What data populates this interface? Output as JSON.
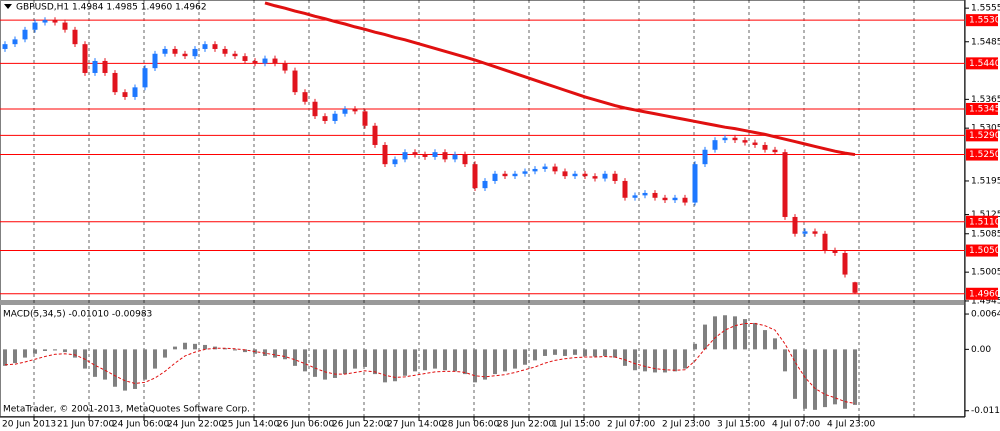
{
  "chart_data": [
    {
      "type": "candlestick",
      "title": "GBPUSD,H1  1.4984 1.4985 1.4960 1.4962",
      "ylim": [
        1.4947,
        1.5572
      ],
      "yticks": [
        1.5555,
        1.5485,
        1.5365,
        1.5305,
        1.5195,
        1.5125,
        1.5085,
        1.5005,
        1.4945
      ],
      "levels": [
        {
          "value": 1.553,
          "label": "1.5530"
        },
        {
          "value": 1.544,
          "label": "1.5440"
        },
        1.5345,
        {
          "value": 1.529,
          "label": "1.5290"
        },
        {
          "value": 1.525,
          "label": "1.5250"
        },
        {
          "value": 1.511,
          "label": "1.5110"
        },
        {
          "value": 1.505,
          "label": "1.5050"
        },
        {
          "value": 1.496,
          "label": "1.4960"
        }
      ],
      "level_color": "#ff0000",
      "up_color": "#1e78ff",
      "down_color": "#e0141e",
      "open": [
        1.547,
        1.548,
        1.549,
        1.551,
        1.5525,
        1.553,
        1.5525,
        1.551,
        1.548,
        1.542,
        1.5445,
        1.542,
        1.538,
        1.537,
        1.539,
        1.543,
        1.546,
        1.547,
        1.546,
        1.5455,
        1.547,
        1.548,
        1.547,
        1.546,
        1.5455,
        1.5445,
        1.544,
        1.545,
        1.544,
        1.5425,
        1.538,
        1.536,
        1.533,
        1.532,
        1.5335,
        1.5345,
        1.534,
        1.531,
        1.527,
        1.523,
        1.524,
        1.5255,
        1.525,
        1.5245,
        1.5255,
        1.524,
        1.525,
        1.523,
        1.518,
        1.5195,
        1.521,
        1.5205,
        1.521,
        1.5215,
        1.522,
        1.5225,
        1.5215,
        1.5205,
        1.521,
        1.5205,
        1.52,
        1.521,
        1.5195,
        1.516,
        1.5165,
        1.517,
        1.516,
        1.5155,
        1.516,
        1.515,
        1.523,
        1.526,
        1.528,
        1.5285,
        1.528,
        1.5275,
        1.527,
        1.526,
        1.5255,
        1.512,
        1.5085,
        1.509,
        1.5085,
        1.505,
        1.5045,
        1.4984
      ],
      "high": [
        1.5486,
        1.5496,
        1.5516,
        1.5531,
        1.5536,
        1.5536,
        1.5531,
        1.5516,
        1.5486,
        1.5451,
        1.5451,
        1.5426,
        1.5386,
        1.5396,
        1.5436,
        1.5466,
        1.5476,
        1.5476,
        1.5466,
        1.5476,
        1.5486,
        1.5486,
        1.5476,
        1.5466,
        1.5461,
        1.5451,
        1.5456,
        1.5456,
        1.5446,
        1.5431,
        1.5386,
        1.5366,
        1.5336,
        1.5341,
        1.5351,
        1.5351,
        1.5346,
        1.5316,
        1.5276,
        1.5246,
        1.5261,
        1.5261,
        1.5256,
        1.5261,
        1.5261,
        1.5256,
        1.5256,
        1.5236,
        1.5201,
        1.5216,
        1.5216,
        1.5216,
        1.5221,
        1.5226,
        1.5231,
        1.5231,
        1.5221,
        1.5216,
        1.5216,
        1.5211,
        1.5216,
        1.5216,
        1.5201,
        1.5171,
        1.5176,
        1.5176,
        1.5166,
        1.5166,
        1.5166,
        1.5236,
        1.5266,
        1.5286,
        1.5291,
        1.5291,
        1.5286,
        1.5281,
        1.5276,
        1.5266,
        1.5261,
        1.5126,
        1.5096,
        1.5096,
        1.5091,
        1.5056,
        1.5051,
        1.4985
      ],
      "low": [
        1.5464,
        1.5474,
        1.5484,
        1.5504,
        1.5519,
        1.5519,
        1.5504,
        1.5474,
        1.5414,
        1.5414,
        1.5414,
        1.5374,
        1.5364,
        1.5364,
        1.5384,
        1.5424,
        1.5454,
        1.5454,
        1.5449,
        1.5449,
        1.5464,
        1.5464,
        1.5454,
        1.5449,
        1.5439,
        1.5434,
        1.5434,
        1.5434,
        1.5419,
        1.5374,
        1.5354,
        1.5324,
        1.5314,
        1.5314,
        1.5329,
        1.5334,
        1.5304,
        1.5264,
        1.5224,
        1.5224,
        1.5234,
        1.5244,
        1.5239,
        1.5239,
        1.5234,
        1.5234,
        1.5224,
        1.5174,
        1.5174,
        1.5189,
        1.5199,
        1.5199,
        1.5204,
        1.5209,
        1.5214,
        1.5209,
        1.5199,
        1.5199,
        1.5199,
        1.5194,
        1.5194,
        1.5189,
        1.5154,
        1.5154,
        1.5159,
        1.5154,
        1.5149,
        1.5149,
        1.5144,
        1.5144,
        1.5224,
        1.5254,
        1.5274,
        1.5274,
        1.5269,
        1.5264,
        1.5254,
        1.5249,
        1.5114,
        1.5079,
        1.5079,
        1.5079,
        1.5044,
        1.5039,
        1.4994,
        1.496
      ],
      "close": [
        1.548,
        1.549,
        1.551,
        1.5525,
        1.553,
        1.5525,
        1.551,
        1.548,
        1.542,
        1.5445,
        1.542,
        1.538,
        1.537,
        1.539,
        1.543,
        1.546,
        1.547,
        1.546,
        1.5455,
        1.547,
        1.548,
        1.547,
        1.546,
        1.5455,
        1.5445,
        1.544,
        1.545,
        1.544,
        1.5425,
        1.538,
        1.536,
        1.533,
        1.532,
        1.5335,
        1.5345,
        1.534,
        1.531,
        1.527,
        1.523,
        1.524,
        1.5255,
        1.525,
        1.5245,
        1.5255,
        1.524,
        1.525,
        1.523,
        1.518,
        1.5195,
        1.521,
        1.5205,
        1.521,
        1.5215,
        1.522,
        1.5225,
        1.5215,
        1.5205,
        1.521,
        1.5205,
        1.52,
        1.521,
        1.5195,
        1.516,
        1.5165,
        1.517,
        1.516,
        1.5155,
        1.516,
        1.515,
        1.523,
        1.526,
        1.528,
        1.5285,
        1.528,
        1.5275,
        1.527,
        1.526,
        1.5255,
        1.512,
        1.5085,
        1.509,
        1.5085,
        1.505,
        1.5045,
        1.5,
        1.4962
      ],
      "ma": {
        "color": "#e01010",
        "values": [
          null,
          null,
          null,
          null,
          null,
          null,
          null,
          null,
          null,
          null,
          null,
          null,
          null,
          null,
          null,
          null,
          null,
          null,
          null,
          null,
          null,
          null,
          null,
          null,
          null,
          null,
          1.5566,
          1.556,
          1.5555,
          1.5549,
          1.5544,
          1.5538,
          1.5533,
          1.5527,
          1.5522,
          1.5516,
          1.5511,
          1.5505,
          1.55,
          1.5494,
          1.5489,
          1.5483,
          1.5477,
          1.5471,
          1.5465,
          1.5459,
          1.5453,
          1.5447,
          1.544,
          1.5433,
          1.5426,
          1.5419,
          1.5412,
          1.5405,
          1.5398,
          1.5391,
          1.5384,
          1.5377,
          1.537,
          1.5364,
          1.5358,
          1.5352,
          1.5347,
          1.5343,
          1.5339,
          1.5335,
          1.5331,
          1.5327,
          1.5323,
          1.5319,
          1.5315,
          1.5311,
          1.5307,
          1.5304,
          1.53,
          1.5296,
          1.5292,
          1.5287,
          1.5282,
          1.5277,
          1.5272,
          1.5267,
          1.5262,
          1.5257,
          1.5253,
          1.525
        ]
      },
      "x_labels": [
        "20 Jun 2013",
        "21 Jun 07:00",
        "24 Jun 06:00",
        "24 Jun 22:00",
        "25 Jun 14:00",
        "26 Jun 06:00",
        "26 Jun 22:00",
        "27 Jun 14:00",
        "28 Jun 06:00",
        "28 Jun 22:00",
        "1 Jul 15:00",
        "2 Jul 07:00",
        "2 Jul 23:00",
        "3 Jul 15:00",
        "4 Jul 07:00",
        "4 Jul 23:00"
      ],
      "footer": "MetaTrader, © 2001-2013, MetaQuotes Software Corp."
    },
    {
      "type": "macd",
      "title": "MACD(5,34,5) -0.01010 -0.00983",
      "ylim": [
        -0.0123,
        0.0077
      ],
      "yticks": [
        0.00642,
        {
          "value": 0,
          "label": "0.00"
        },
        -0.01116
      ],
      "series": [
        {
          "type": "bar",
          "color": "#808080",
          "values": [
            -0.003,
            -0.0025,
            -0.0015,
            -0.0008,
            -0.0003,
            -0.0002,
            -0.0005,
            -0.0015,
            -0.0035,
            -0.005,
            -0.0055,
            -0.0068,
            -0.0075,
            -0.0072,
            -0.0055,
            -0.0035,
            -0.0015,
            0.0005,
            0.0012,
            0.001,
            0.0008,
            0.0005,
            0.0002,
            -0.0002,
            -0.0005,
            -0.0008,
            -0.0012,
            -0.0015,
            -0.0018,
            -0.003,
            -0.004,
            -0.005,
            -0.0055,
            -0.0052,
            -0.0045,
            -0.0035,
            -0.0032,
            -0.0045,
            -0.006,
            -0.0058,
            -0.0048,
            -0.004,
            -0.0038,
            -0.0035,
            -0.0038,
            -0.004,
            -0.0045,
            -0.006,
            -0.0055,
            -0.0045,
            -0.004,
            -0.0035,
            -0.0028,
            -0.002,
            -0.0012,
            -0.001,
            -0.0012,
            -0.001,
            -0.0012,
            -0.0013,
            -0.0012,
            -0.0015,
            -0.003,
            -0.0038,
            -0.004,
            -0.0042,
            -0.0042,
            -0.004,
            -0.0035,
            0.001,
            0.0045,
            0.006,
            0.0062,
            0.006,
            0.0055,
            0.0048,
            0.0035,
            0.002,
            -0.004,
            -0.009,
            -0.0108,
            -0.011,
            -0.0105,
            -0.01,
            -0.0108,
            -0.0101
          ]
        },
        {
          "type": "line",
          "color": "#e01010",
          "values": [
            -0.0028,
            -0.0027,
            -0.0023,
            -0.0018,
            -0.0013,
            -0.0009,
            -0.0008,
            -0.001,
            -0.0018,
            -0.0029,
            -0.0038,
            -0.0048,
            -0.0057,
            -0.0062,
            -0.006,
            -0.0052,
            -0.004,
            -0.0025,
            -0.0012,
            -0.0005,
            0.0,
            0.0002,
            0.0002,
            0.0001,
            -0.0001,
            -0.0004,
            -0.0007,
            -0.001,
            -0.0013,
            -0.0019,
            -0.0026,
            -0.0034,
            -0.0041,
            -0.0045,
            -0.0045,
            -0.0042,
            -0.0039,
            -0.0041,
            -0.0047,
            -0.0051,
            -0.005,
            -0.0047,
            -0.0044,
            -0.0041,
            -0.004,
            -0.004,
            -0.0042,
            -0.0048,
            -0.005,
            -0.0048,
            -0.0046,
            -0.0042,
            -0.0037,
            -0.0032,
            -0.0025,
            -0.002,
            -0.0017,
            -0.0015,
            -0.0014,
            -0.0014,
            -0.0013,
            -0.0014,
            -0.0019,
            -0.0026,
            -0.0031,
            -0.0035,
            -0.0037,
            -0.0038,
            -0.0037,
            -0.0021,
            0.0001,
            0.0021,
            0.0035,
            0.0043,
            0.0047,
            0.0047,
            0.0043,
            0.0035,
            0.001,
            -0.0023,
            -0.0051,
            -0.0071,
            -0.0082,
            -0.0088,
            -0.0095,
            -0.00983
          ]
        }
      ]
    }
  ]
}
